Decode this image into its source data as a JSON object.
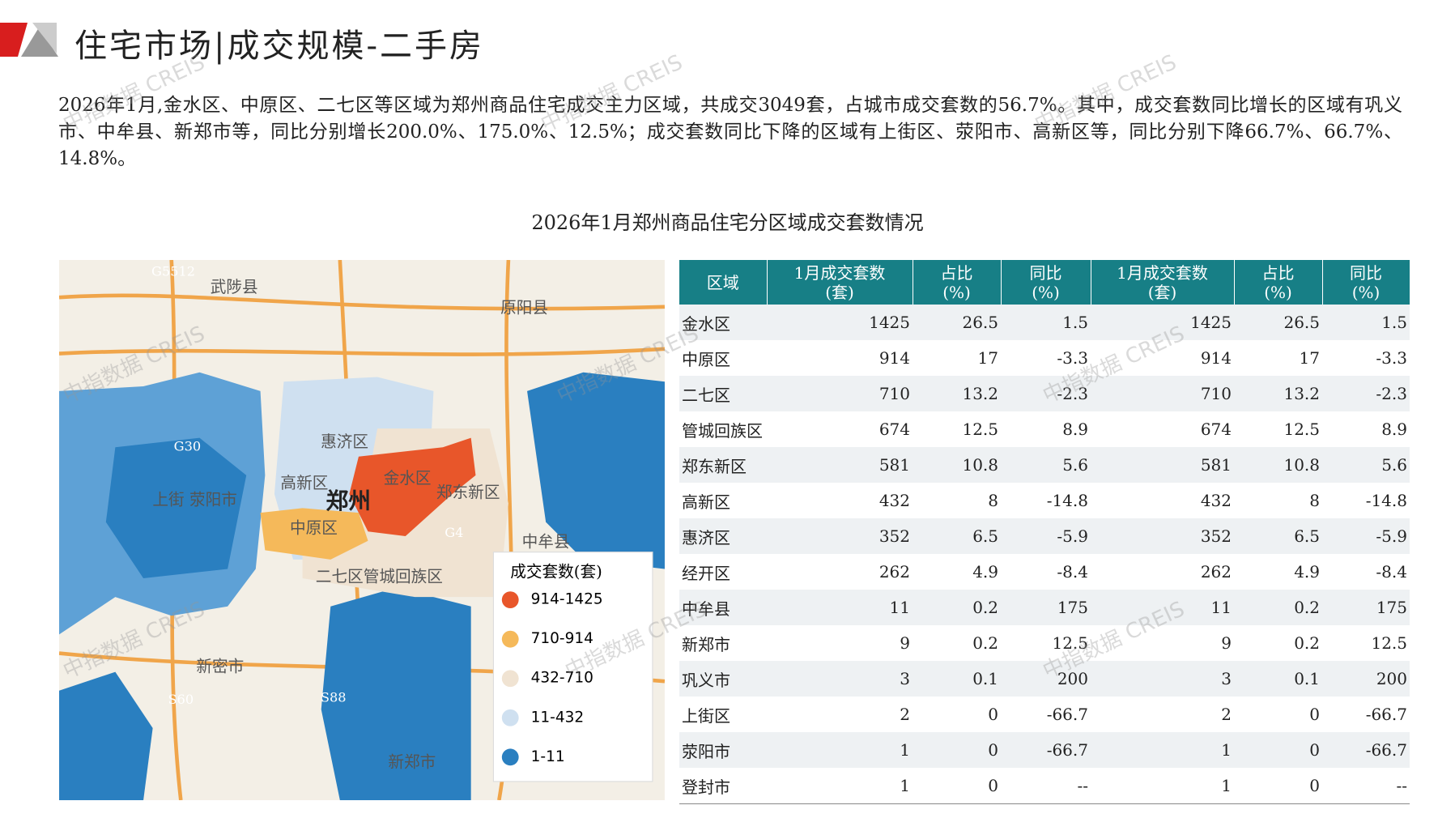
{
  "header": {
    "title": "住宅市场|成交规模-二手房"
  },
  "summary": "2026年1月,金水区、中原区、二七区等区域为郑州商品住宅成交主力区域，共成交3049套，占城市成交套数的56.7%。其中，成交套数同比增长的区域有巩义市、中牟县、新郑市等，同比分别增长200.0%、175.0%、12.5%；成交套数同比下降的区域有上街区、荥阳市、高新区等，同比分别下降66.7%、66.7%、14.8%。",
  "figure_title": "2026年1月郑州商品住宅分区域成交套数情况",
  "watermark": "中指数据 CREIS",
  "map": {
    "labels": [
      "武陟县",
      "原阳县",
      "惠济区",
      "高新区",
      "金水区",
      "郑州",
      "郑东新区",
      "中原区",
      "二七区管城回族区",
      "上街 荥阳市",
      "中牟县",
      "新密市",
      "新郑市",
      "G5512",
      "G30",
      "G4",
      "S60",
      "S88"
    ],
    "legend": {
      "title": "成交套数(套)",
      "items": [
        {
          "label": "914-1425",
          "color": "#e8562a"
        },
        {
          "label": "710-914",
          "color": "#f5b95a"
        },
        {
          "label": "432-710",
          "color": "#f0e3d2"
        },
        {
          "label": "11-432",
          "color": "#cfe0f0"
        },
        {
          "label": "1-11",
          "color": "#2a7fc0"
        }
      ]
    }
  },
  "table": {
    "headers": [
      {
        "label": "区域"
      },
      {
        "label": "1月成交套数",
        "unit": "(套)"
      },
      {
        "label": "占比",
        "unit": "(%)"
      },
      {
        "label": "同比",
        "unit": "(%)"
      },
      {
        "label": "1月成交套数",
        "unit": "(套)"
      },
      {
        "label": "占比",
        "unit": "(%)"
      },
      {
        "label": "同比",
        "unit": "(%)"
      }
    ],
    "rows": [
      [
        "金水区",
        1425,
        26.5,
        1.5,
        1425,
        26.5,
        1.5
      ],
      [
        "中原区",
        914,
        17,
        -3.3,
        914,
        17,
        -3.3
      ],
      [
        "二七区",
        710,
        13.2,
        -2.3,
        710,
        13.2,
        -2.3
      ],
      [
        "管城回族区",
        674,
        12.5,
        8.9,
        674,
        12.5,
        8.9
      ],
      [
        "郑东新区",
        581,
        10.8,
        5.6,
        581,
        10.8,
        5.6
      ],
      [
        "高新区",
        432,
        8,
        -14.8,
        432,
        8,
        -14.8
      ],
      [
        "惠济区",
        352,
        6.5,
        -5.9,
        352,
        6.5,
        -5.9
      ],
      [
        "经开区",
        262,
        4.9,
        -8.4,
        262,
        4.9,
        -8.4
      ],
      [
        "中牟县",
        11,
        0.2,
        175,
        11,
        0.2,
        175
      ],
      [
        "新郑市",
        9,
        0.2,
        12.5,
        9,
        0.2,
        12.5
      ],
      [
        "巩义市",
        3,
        0.1,
        200,
        3,
        0.1,
        200
      ],
      [
        "上街区",
        2,
        0,
        -66.7,
        2,
        0,
        -66.7
      ],
      [
        "荥阳市",
        1,
        0,
        -66.7,
        1,
        0,
        -66.7
      ],
      [
        "登封市",
        1,
        0,
        "--",
        1,
        0,
        "--"
      ]
    ]
  }
}
